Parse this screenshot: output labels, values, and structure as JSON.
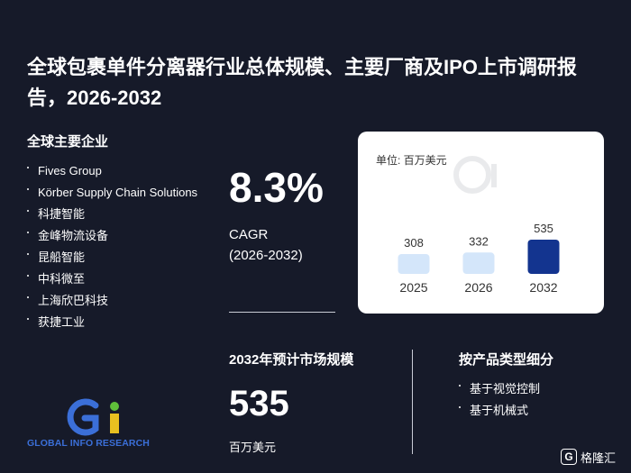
{
  "title": "全球包裹单件分离器行业总体规模、主要厂商及IPO上市调研报告，2026-2032",
  "companies": {
    "heading": "全球主要企业",
    "items": [
      "Fives Group",
      "Körber Supply Chain Solutions",
      "科捷智能",
      "金峰物流设备",
      "昆船智能",
      "中科微至",
      "上海欣巴科技",
      "获捷工业"
    ]
  },
  "cagr": {
    "value": "8.3%",
    "label": "CAGR",
    "period": "(2026-2032)"
  },
  "chart_data": {
    "type": "bar",
    "unit_label": "单位: 百万美元",
    "categories": [
      "2025",
      "2026",
      "2032"
    ],
    "values": [
      308,
      332,
      535
    ],
    "bar_colors": [
      "#d4e6fa",
      "#d4e6fa",
      "#13348f"
    ]
  },
  "market": {
    "heading": "2032年预计市场规模",
    "value": "535",
    "unit": "百万美元"
  },
  "segments": {
    "heading": "按产品类型细分",
    "items": [
      "基于视觉控制",
      "基于机械式"
    ]
  },
  "brand": {
    "logo_text": "GLOBAL INFO RESEARCH",
    "logo_colors": [
      "#3b6fd8",
      "#e8c020",
      "#5fbf3a"
    ],
    "watermark_name": "格隆汇",
    "watermark_mark": "G"
  }
}
